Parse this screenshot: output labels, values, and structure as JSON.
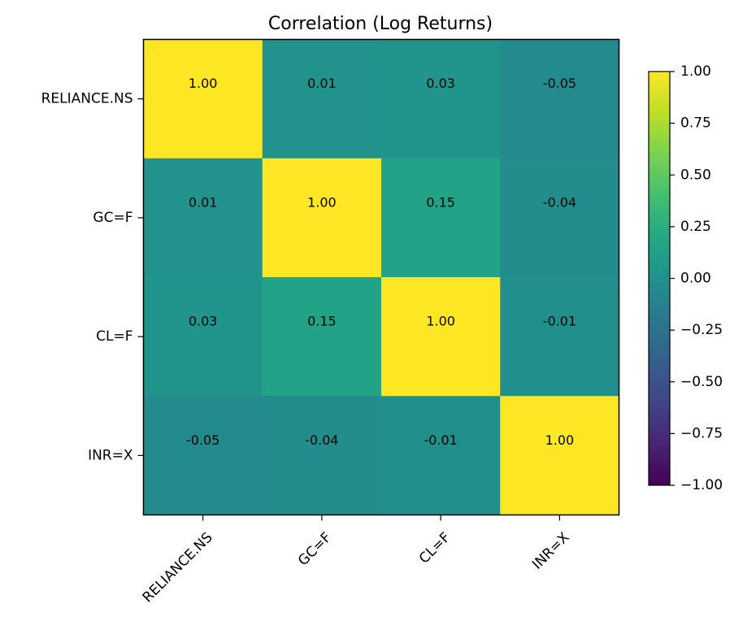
{
  "chart_data": {
    "type": "heatmap",
    "title": "Correlation (Log Returns)",
    "rows": [
      "RELIANCE.NS",
      "GC=F",
      "CL=F",
      "INR=X"
    ],
    "columns": [
      "RELIANCE.NS",
      "GC=F",
      "CL=F",
      "INR=X"
    ],
    "values": [
      [
        1.0,
        0.01,
        0.03,
        -0.05
      ],
      [
        0.01,
        1.0,
        0.15,
        -0.04
      ],
      [
        0.03,
        0.15,
        1.0,
        -0.01
      ],
      [
        -0.05,
        -0.04,
        -0.01,
        1.0
      ]
    ],
    "cell_labels": [
      [
        "1.00",
        "0.01",
        "0.03",
        "-0.05"
      ],
      [
        "0.01",
        "1.00",
        "0.15",
        "-0.04"
      ],
      [
        "0.03",
        "0.15",
        "1.00",
        "-0.01"
      ],
      [
        "-0.05",
        "-0.04",
        "-0.01",
        "1.00"
      ]
    ],
    "colormap": "viridis",
    "vmin": -1.0,
    "vmax": 1.0,
    "colorbar_ticks": [
      1.0,
      0.75,
      0.5,
      0.25,
      0.0,
      -0.25,
      -0.5,
      -0.75,
      -1.0
    ],
    "colorbar_tick_labels": [
      "1.00",
      "0.75",
      "0.50",
      "0.25",
      "0.00",
      "−0.25",
      "−0.50",
      "−0.75",
      "−1.00"
    ],
    "colorbar_placement": "right",
    "grid": false
  }
}
